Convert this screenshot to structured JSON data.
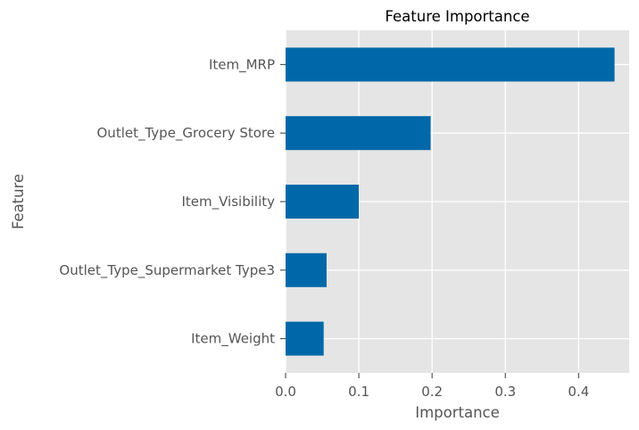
{
  "chart_data": {
    "type": "bar",
    "orientation": "horizontal",
    "title": "Feature Importance",
    "xlabel": "Importance",
    "ylabel": "Feature",
    "categories": [
      "Item_MRP",
      "Outlet_Type_Grocery Store",
      "Item_Visibility",
      "Outlet_Type_Supermarket Type3",
      "Item_Weight"
    ],
    "values": [
      0.449,
      0.198,
      0.1,
      0.056,
      0.052
    ],
    "xlim": [
      0,
      0.469
    ],
    "xticks": [
      0.0,
      0.1,
      0.2,
      0.3,
      0.4
    ],
    "xtick_labels": [
      "0.0",
      "0.1",
      "0.2",
      "0.3",
      "0.4"
    ],
    "grid": true,
    "bar_color": "#0068a8",
    "plot_background": "#e5e5e5",
    "grid_color": "#ffffff"
  }
}
